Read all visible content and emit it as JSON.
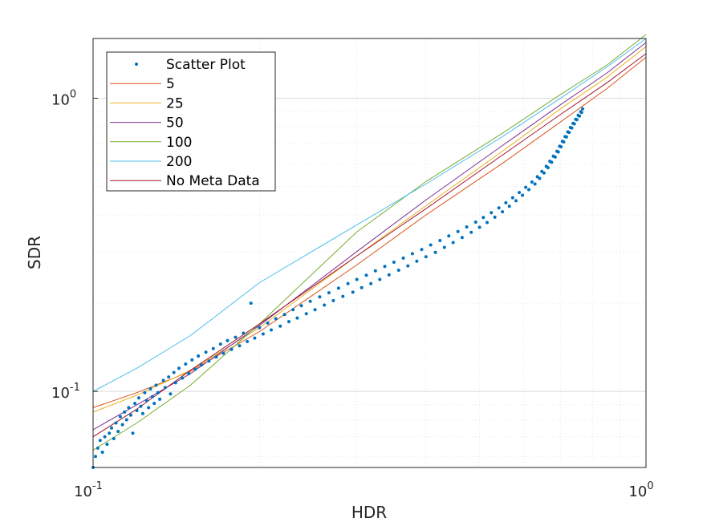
{
  "chart_data": {
    "type": "scatter",
    "xlabel": "HDR",
    "ylabel": "SDR",
    "xscale": "log",
    "yscale": "log",
    "xlim": [
      0.1,
      1.0
    ],
    "ylim": [
      0.055,
      1.6
    ],
    "grid": true,
    "minor_grid": true,
    "legend_position": "top-left",
    "x_ticks": [
      {
        "base": "10",
        "exp": "-1",
        "value": 0.1
      },
      {
        "base": "10",
        "exp": "0",
        "value": 1.0
      }
    ],
    "y_ticks": [
      {
        "base": "10",
        "exp": "-1",
        "value": 0.1
      },
      {
        "base": "10",
        "exp": "0",
        "value": 1.0
      }
    ],
    "scatter": {
      "name": "Scatter Plot",
      "color": "#0072bd",
      "points": [
        [
          0.1,
          0.055
        ],
        [
          0.101,
          0.06
        ],
        [
          0.102,
          0.064
        ],
        [
          0.103,
          0.068
        ],
        [
          0.104,
          0.062
        ],
        [
          0.105,
          0.07
        ],
        [
          0.106,
          0.066
        ],
        [
          0.107,
          0.072
        ],
        [
          0.108,
          0.075
        ],
        [
          0.109,
          0.069
        ],
        [
          0.11,
          0.078
        ],
        [
          0.111,
          0.073
        ],
        [
          0.112,
          0.082
        ],
        [
          0.113,
          0.077
        ],
        [
          0.114,
          0.085
        ],
        [
          0.115,
          0.08
        ],
        [
          0.116,
          0.088
        ],
        [
          0.117,
          0.083
        ],
        [
          0.118,
          0.072
        ],
        [
          0.119,
          0.091
        ],
        [
          0.12,
          0.086
        ],
        [
          0.121,
          0.095
        ],
        [
          0.122,
          0.089
        ],
        [
          0.123,
          0.084
        ],
        [
          0.124,
          0.099
        ],
        [
          0.125,
          0.093
        ],
        [
          0.126,
          0.088
        ],
        [
          0.127,
          0.102
        ],
        [
          0.128,
          0.096
        ],
        [
          0.129,
          0.091
        ],
        [
          0.13,
          0.105
        ],
        [
          0.131,
          0.099
        ],
        [
          0.132,
          0.094
        ],
        [
          0.134,
          0.109
        ],
        [
          0.135,
          0.103
        ],
        [
          0.137,
          0.112
        ],
        [
          0.138,
          0.098
        ],
        [
          0.14,
          0.116
        ],
        [
          0.141,
          0.107
        ],
        [
          0.143,
          0.12
        ],
        [
          0.145,
          0.111
        ],
        [
          0.147,
          0.124
        ],
        [
          0.149,
          0.115
        ],
        [
          0.151,
          0.128
        ],
        [
          0.153,
          0.119
        ],
        [
          0.155,
          0.132
        ],
        [
          0.157,
          0.123
        ],
        [
          0.16,
          0.136
        ],
        [
          0.162,
          0.127
        ],
        [
          0.165,
          0.14
        ],
        [
          0.167,
          0.131
        ],
        [
          0.17,
          0.145
        ],
        [
          0.172,
          0.135
        ],
        [
          0.175,
          0.149
        ],
        [
          0.178,
          0.139
        ],
        [
          0.181,
          0.153
        ],
        [
          0.184,
          0.143
        ],
        [
          0.187,
          0.158
        ],
        [
          0.19,
          0.148
        ],
        [
          0.193,
          0.2
        ],
        [
          0.196,
          0.152
        ],
        [
          0.2,
          0.165
        ],
        [
          0.203,
          0.157
        ],
        [
          0.207,
          0.171
        ],
        [
          0.21,
          0.162
        ],
        [
          0.214,
          0.177
        ],
        [
          0.218,
          0.167
        ],
        [
          0.222,
          0.183
        ],
        [
          0.226,
          0.173
        ],
        [
          0.23,
          0.19
        ],
        [
          0.234,
          0.178
        ],
        [
          0.238,
          0.196
        ],
        [
          0.243,
          0.184
        ],
        [
          0.247,
          0.203
        ],
        [
          0.252,
          0.19
        ],
        [
          0.257,
          0.21
        ],
        [
          0.262,
          0.197
        ],
        [
          0.267,
          0.217
        ],
        [
          0.272,
          0.204
        ],
        [
          0.278,
          0.225
        ],
        [
          0.283,
          0.211
        ],
        [
          0.289,
          0.233
        ],
        [
          0.295,
          0.218
        ],
        [
          0.3,
          0.241
        ],
        [
          0.306,
          0.226
        ],
        [
          0.312,
          0.249
        ],
        [
          0.318,
          0.233
        ],
        [
          0.324,
          0.258
        ],
        [
          0.33,
          0.241
        ],
        [
          0.337,
          0.267
        ],
        [
          0.343,
          0.25
        ],
        [
          0.35,
          0.276
        ],
        [
          0.357,
          0.259
        ],
        [
          0.364,
          0.285
        ],
        [
          0.371,
          0.268
        ],
        [
          0.378,
          0.295
        ],
        [
          0.385,
          0.278
        ],
        [
          0.393,
          0.305
        ],
        [
          0.4,
          0.288
        ],
        [
          0.408,
          0.316
        ],
        [
          0.416,
          0.298
        ],
        [
          0.424,
          0.327
        ],
        [
          0.432,
          0.31
        ],
        [
          0.44,
          0.339
        ],
        [
          0.448,
          0.322
        ],
        [
          0.457,
          0.351
        ],
        [
          0.465,
          0.335
        ],
        [
          0.474,
          0.364
        ],
        [
          0.483,
          0.349
        ],
        [
          0.492,
          0.378
        ],
        [
          0.5,
          0.363
        ],
        [
          0.508,
          0.392
        ],
        [
          0.516,
          0.377
        ],
        [
          0.525,
          0.407
        ],
        [
          0.533,
          0.393
        ],
        [
          0.542,
          0.423
        ],
        [
          0.55,
          0.41
        ],
        [
          0.558,
          0.44
        ],
        [
          0.566,
          0.428
        ],
        [
          0.574,
          0.458
        ],
        [
          0.582,
          0.447
        ],
        [
          0.59,
          0.477
        ],
        [
          0.598,
          0.467
        ],
        [
          0.606,
          0.497
        ],
        [
          0.614,
          0.488
        ],
        [
          0.622,
          0.518
        ],
        [
          0.63,
          0.51
        ],
        [
          0.636,
          0.54
        ],
        [
          0.642,
          0.533
        ],
        [
          0.648,
          0.563
        ],
        [
          0.654,
          0.556
        ],
        [
          0.66,
          0.586
        ],
        [
          0.665,
          0.58
        ],
        [
          0.67,
          0.61
        ],
        [
          0.675,
          0.605
        ],
        [
          0.68,
          0.635
        ],
        [
          0.685,
          0.63
        ],
        [
          0.69,
          0.66
        ],
        [
          0.694,
          0.656
        ],
        [
          0.698,
          0.686
        ],
        [
          0.702,
          0.683
        ],
        [
          0.706,
          0.713
        ],
        [
          0.71,
          0.71
        ],
        [
          0.714,
          0.74
        ],
        [
          0.718,
          0.738
        ],
        [
          0.722,
          0.768
        ],
        [
          0.726,
          0.765
        ],
        [
          0.73,
          0.795
        ],
        [
          0.734,
          0.792
        ],
        [
          0.738,
          0.822
        ],
        [
          0.742,
          0.818
        ],
        [
          0.746,
          0.848
        ],
        [
          0.75,
          0.845
        ],
        [
          0.754,
          0.875
        ],
        [
          0.758,
          0.87
        ],
        [
          0.762,
          0.9
        ],
        [
          0.765,
          0.895
        ],
        [
          0.768,
          0.92
        ]
      ]
    },
    "series": [
      {
        "name": "5",
        "color": "#d95319",
        "x": [
          0.1,
          0.12,
          0.15,
          0.2,
          0.3,
          0.4,
          0.55,
          0.7,
          0.85,
          1.0
        ],
        "y": [
          0.088,
          0.099,
          0.117,
          0.16,
          0.27,
          0.4,
          0.6,
          0.83,
          1.08,
          1.38
        ]
      },
      {
        "name": "25",
        "color": "#edb120",
        "x": [
          0.1,
          0.12,
          0.15,
          0.2,
          0.3,
          0.4,
          0.55,
          0.7,
          0.85,
          1.0
        ],
        "y": [
          0.085,
          0.097,
          0.118,
          0.165,
          0.29,
          0.43,
          0.66,
          0.92,
          1.18,
          1.5
        ]
      },
      {
        "name": "50",
        "color": "#7e2f8e",
        "x": [
          0.1,
          0.12,
          0.15,
          0.2,
          0.3,
          0.4,
          0.55,
          0.7,
          0.85,
          1.0
        ],
        "y": [
          0.074,
          0.09,
          0.115,
          0.168,
          0.3,
          0.45,
          0.69,
          0.95,
          1.22,
          1.55
        ]
      },
      {
        "name": "100",
        "color": "#77ac30",
        "x": [
          0.1,
          0.12,
          0.15,
          0.2,
          0.3,
          0.4,
          0.55,
          0.7,
          0.85,
          1.0
        ],
        "y": [
          0.063,
          0.078,
          0.105,
          0.17,
          0.35,
          0.52,
          0.76,
          1.03,
          1.3,
          1.65
        ]
      },
      {
        "name": "200",
        "color": "#4dbeee",
        "x": [
          0.1,
          0.12,
          0.15,
          0.2,
          0.3,
          0.4,
          0.55,
          0.7,
          0.85,
          1.0
        ],
        "y": [
          0.1,
          0.12,
          0.155,
          0.235,
          0.37,
          0.51,
          0.74,
          1.0,
          1.28,
          1.6
        ]
      },
      {
        "name": "No Meta Data",
        "color": "#a2142f",
        "x": [
          0.1,
          0.12,
          0.15,
          0.2,
          0.3,
          0.4,
          0.55,
          0.7,
          0.85,
          1.0
        ],
        "y": [
          0.07,
          0.087,
          0.118,
          0.17,
          0.29,
          0.42,
          0.64,
          0.88,
          1.13,
          1.42
        ]
      }
    ]
  }
}
